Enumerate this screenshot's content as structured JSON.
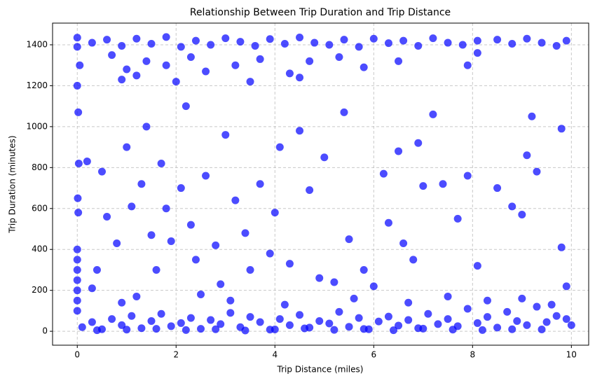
{
  "chart_data": {
    "type": "scatter",
    "title": "Relationship Between Trip Duration and Trip Distance",
    "x_label": "Trip Distance (miles)",
    "y_label": "Trip Duration (minutes)",
    "color": "#0000ff",
    "grid": true,
    "xlim": [
      -0.5,
      10.35
    ],
    "ylim": [
      -68,
      1506
    ],
    "xticks": [
      0,
      2,
      4,
      6,
      8,
      10
    ],
    "yticks": [
      0,
      200,
      400,
      600,
      800,
      1000,
      1200,
      1400
    ],
    "x": [
      0.1,
      0.3,
      0.5,
      0.7,
      0.9,
      1.1,
      1.3,
      1.5,
      1.7,
      1.9,
      2.1,
      2.3,
      2.5,
      2.7,
      2.9,
      3.1,
      3.3,
      3.5,
      3.7,
      3.9,
      4.1,
      4.3,
      4.5,
      4.7,
      4.9,
      5.1,
      5.3,
      5.5,
      5.7,
      5.9,
      6.1,
      6.3,
      6.5,
      6.7,
      6.9,
      7.1,
      7.3,
      7.5,
      7.7,
      7.9,
      8.1,
      8.3,
      8.5,
      8.7,
      8.9,
      9.1,
      9.3,
      9.5,
      9.7,
      9.9,
      0.4,
      1.0,
      1.6,
      2.2,
      2.8,
      3.4,
      4.0,
      4.6,
      5.2,
      5.8,
      6.4,
      7.0,
      7.6,
      8.2,
      8.8,
      9.4,
      10.0,
      0,
      0,
      0,
      0,
      0,
      0,
      0,
      0.02,
      0.03,
      0.01,
      0,
      0.05,
      0.02,
      0,
      0,
      0.3,
      0.6,
      0.9,
      1.2,
      1.5,
      1.8,
      2.1,
      2.4,
      2.7,
      3.0,
      3.3,
      3.6,
      3.9,
      4.2,
      4.5,
      4.8,
      5.1,
      5.4,
      5.7,
      6.0,
      6.3,
      6.6,
      6.9,
      7.2,
      7.5,
      7.8,
      8.1,
      8.5,
      8.8,
      9.1,
      9.4,
      9.7,
      9.9,
      0.7,
      1.0,
      1.4,
      0.9,
      1.8,
      2.3,
      2.6,
      3.2,
      3.7,
      4.3,
      4.7,
      5.3,
      5.8,
      6.5,
      7.9,
      8.1,
      1.2,
      2.0,
      3.5,
      4.5,
      0.5,
      0.6,
      0.8,
      1.0,
      1.1,
      1.3,
      1.4,
      1.5,
      1.6,
      1.7,
      1.8,
      1.9,
      2.1,
      2.2,
      2.3,
      2.4,
      2.6,
      2.8,
      2.9,
      3.0,
      3.2,
      3.4,
      3.5,
      3.7,
      3.9,
      4.0,
      4.1,
      4.3,
      4.5,
      4.7,
      4.9,
      5.0,
      5.2,
      5.4,
      5.5,
      5.8,
      6.0,
      6.2,
      6.3,
      6.5,
      6.6,
      6.8,
      6.9,
      7.0,
      7.2,
      7.4,
      7.7,
      7.9,
      8.1,
      8.5,
      8.8,
      9.0,
      9.1,
      9.2,
      9.3,
      9.8,
      9.8,
      9.9,
      0.2,
      0.4,
      0.3,
      0.9,
      1.2,
      2.5,
      3.1,
      4.2,
      5.6,
      6.7,
      7.5,
      8.3,
      9.0,
      9.6
    ],
    "y": [
      20,
      45,
      10,
      60,
      30,
      75,
      15,
      50,
      85,
      25,
      40,
      65,
      12,
      55,
      35,
      90,
      20,
      70,
      45,
      8,
      60,
      30,
      80,
      18,
      50,
      38,
      95,
      22,
      65,
      10,
      48,
      72,
      28,
      55,
      15,
      85,
      35,
      60,
      25,
      110,
      40,
      70,
      18,
      95,
      50,
      30,
      120,
      45,
      75,
      60,
      5,
      8,
      12,
      6,
      10,
      4,
      9,
      14,
      7,
      11,
      5,
      13,
      8,
      6,
      10,
      9,
      30,
      400,
      350,
      300,
      250,
      200,
      150,
      100,
      580,
      820,
      650,
      1200,
      1300,
      1070,
      1390,
      1435,
      1410,
      1425,
      1395,
      1430,
      1405,
      1438,
      1390,
      1420,
      1400,
      1432,
      1415,
      1395,
      1428,
      1405,
      1436,
      1410,
      1400,
      1425,
      1390,
      1430,
      1408,
      1420,
      1395,
      1432,
      1410,
      1400,
      1420,
      1425,
      1405,
      1430,
      1410,
      1395,
      1420,
      1350,
      1280,
      1320,
      1230,
      1300,
      1340,
      1270,
      1300,
      1330,
      1260,
      1320,
      1340,
      1290,
      1320,
      1300,
      1360,
      1250,
      1220,
      1220,
      1240,
      780,
      560,
      430,
      900,
      610,
      720,
      1000,
      470,
      300,
      820,
      600,
      440,
      700,
      1100,
      520,
      350,
      760,
      420,
      230,
      960,
      640,
      480,
      300,
      720,
      380,
      580,
      900,
      330,
      980,
      690,
      260,
      850,
      240,
      1070,
      450,
      300,
      220,
      770,
      530,
      880,
      430,
      350,
      920,
      710,
      1060,
      720,
      550,
      760,
      320,
      700,
      610,
      570,
      860,
      1050,
      780,
      990,
      410,
      220,
      830,
      300,
      210,
      140,
      170,
      180,
      150,
      130,
      160,
      140,
      170,
      150,
      160,
      130
    ]
  }
}
